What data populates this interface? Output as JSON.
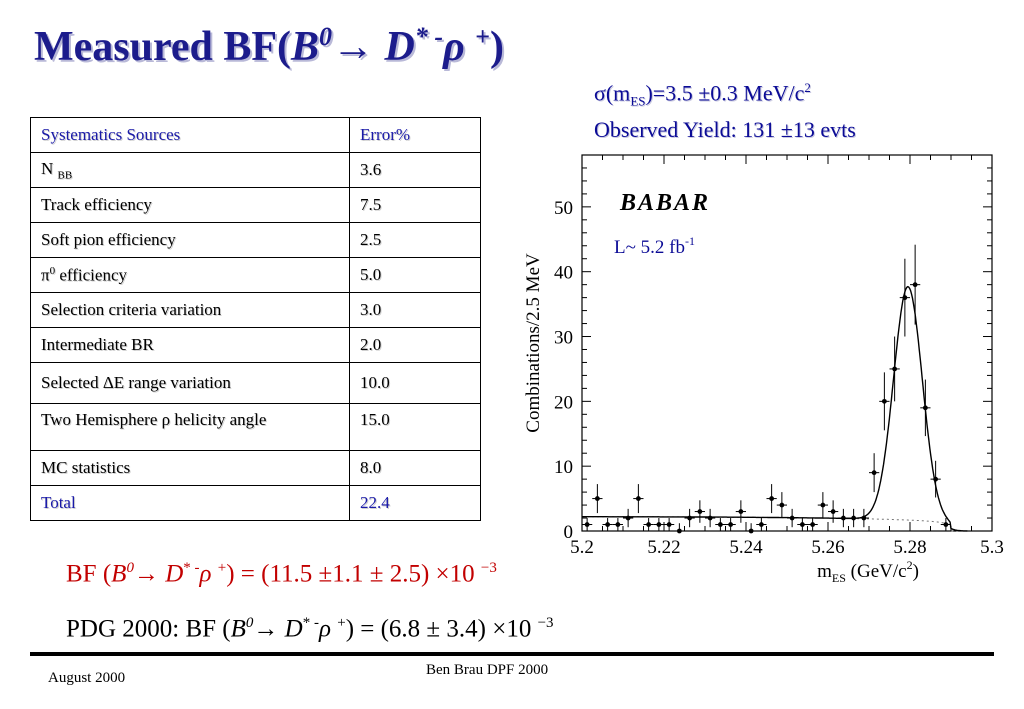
{
  "title": {
    "prefix": "Measured BF(",
    "b": "B",
    "b_sup": "0",
    "arrow": "→",
    "d": "D",
    "d_sup": "* -",
    "rho": "ρ",
    "rho_sup": "+",
    "close": ")"
  },
  "resolution": {
    "sigma": "σ",
    "open": "(m",
    "sub": "ES",
    "rest": ")=3.5 ±0.3 MeV/c",
    "sup": "2"
  },
  "yield": "Observed Yield: 131 ±13 evts",
  "table": {
    "headers": [
      "Systematics Sources",
      "Error%"
    ],
    "rows": [
      {
        "source": "N ",
        "source_sub": "BB",
        "error": "3.6"
      },
      {
        "source": "Track efficiency",
        "error": "7.5"
      },
      {
        "source": "Soft pion efficiency",
        "error": "2.5"
      },
      {
        "source": "π",
        "source_sup": "0",
        "source_tail": " efficiency",
        "error": "5.0"
      },
      {
        "source": "Selection criteria variation",
        "error": "3.0"
      },
      {
        "source": "Intermediate BR",
        "error": "2.0"
      },
      {
        "source": "Selected ΔE range variation",
        "error": "10.0"
      },
      {
        "source": "Two Hemisphere ρ helicity angle",
        "error": "15.0"
      },
      {
        "source": "MC statistics",
        "error": "8.0"
      }
    ],
    "total": {
      "source": "Total",
      "error": "22.4"
    }
  },
  "result_bf": {
    "lead": "BF (",
    "b": "B",
    "b_sup": "0",
    "arrow": "→",
    "d": "D",
    "d_sup": "* -",
    "rho": "ρ",
    "rho_sup": "+",
    "value": ") = (11.5 ±1.1 ± 2.5) ×10 ",
    "exp": "−3"
  },
  "result_pdg": {
    "lead": "PDG 2000: BF (",
    "b": "B",
    "b_sup": "0",
    "arrow": "→",
    "d": "D",
    "d_sup": "* -",
    "rho": "ρ",
    "rho_sup": "+",
    "value": ") = (6.8 ± 3.4) ×10 ",
    "exp": "−3"
  },
  "footer": {
    "author": "Ben Brau  DPF 2000",
    "date": "August  2000"
  },
  "chart_data": {
    "type": "scatter",
    "logo": "BABAR",
    "luminosity": {
      "text": "L~ 5.2 fb",
      "sup": "-1"
    },
    "xlabel": "m",
    "xlabel_sub": "ES",
    "xlabel_tail": " (GeV/c",
    "xlabel_sup": "2",
    "xlabel_close": ")",
    "ylabel": "Combinations/2.5 MeV",
    "xlim": [
      5.2,
      5.3
    ],
    "ylim": [
      0,
      58
    ],
    "xticks": [
      "5.2",
      "5.22",
      "5.24",
      "5.26",
      "5.28",
      "5.3"
    ],
    "yticks": [
      "0",
      "10",
      "20",
      "30",
      "40",
      "50"
    ],
    "series": [
      {
        "points": [
          [
            5.20125,
            1
          ],
          [
            5.20375,
            5
          ],
          [
            5.20625,
            1
          ],
          [
            5.20875,
            1
          ],
          [
            5.21125,
            2
          ],
          [
            5.21375,
            5
          ],
          [
            5.21625,
            1
          ],
          [
            5.21875,
            1
          ],
          [
            5.22125,
            1
          ],
          [
            5.22375,
            0
          ],
          [
            5.22625,
            2
          ],
          [
            5.22875,
            3
          ],
          [
            5.23125,
            2
          ],
          [
            5.23375,
            1
          ],
          [
            5.23625,
            1
          ],
          [
            5.23875,
            3
          ],
          [
            5.24125,
            0
          ],
          [
            5.24375,
            1
          ],
          [
            5.24625,
            5
          ],
          [
            5.24875,
            4
          ],
          [
            5.25125,
            2
          ],
          [
            5.25375,
            1
          ],
          [
            5.25625,
            1
          ],
          [
            5.25875,
            4
          ],
          [
            5.26125,
            3
          ],
          [
            5.26375,
            2
          ],
          [
            5.26625,
            2
          ],
          [
            5.26875,
            2
          ],
          [
            5.27125,
            9
          ],
          [
            5.27375,
            20
          ],
          [
            5.27625,
            25
          ],
          [
            5.27875,
            36
          ],
          [
            5.28125,
            38
          ],
          [
            5.28375,
            19
          ],
          [
            5.28625,
            8
          ],
          [
            5.28875,
            1
          ]
        ]
      }
    ],
    "fit_background": 2.2,
    "fit_peak": {
      "mean": 5.2795,
      "sigma": 0.0035,
      "amplitude": 36
    }
  }
}
